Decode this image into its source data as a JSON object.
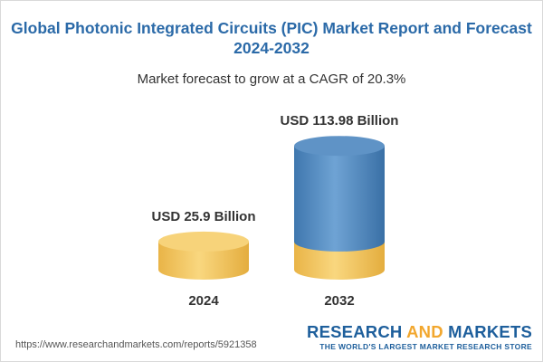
{
  "chart_data": {
    "type": "bar",
    "style": "3d-cylinder",
    "title": "Global Photonic Integrated Circuits (PIC) Market Report and Forecast 2024-2032",
    "subtitle": "Market forecast to grow at a CAGR of 20.3%",
    "categories": [
      "2024",
      "2032"
    ],
    "values": [
      25.9,
      113.98
    ],
    "data_labels": [
      "USD 25.9 Billion",
      "USD 113.98 Billion"
    ],
    "unit": "USD Billion",
    "base_color": "#f2c661",
    "growth_color": "#4f87bd"
  },
  "footer": {
    "url": "https://www.researchandmarkets.com/reports/5921358",
    "logo_word1": "RESEARCH ",
    "logo_word2": "AND",
    "logo_word3": " MARKETS",
    "tagline": "THE WORLD'S LARGEST MARKET RESEARCH STORE"
  }
}
